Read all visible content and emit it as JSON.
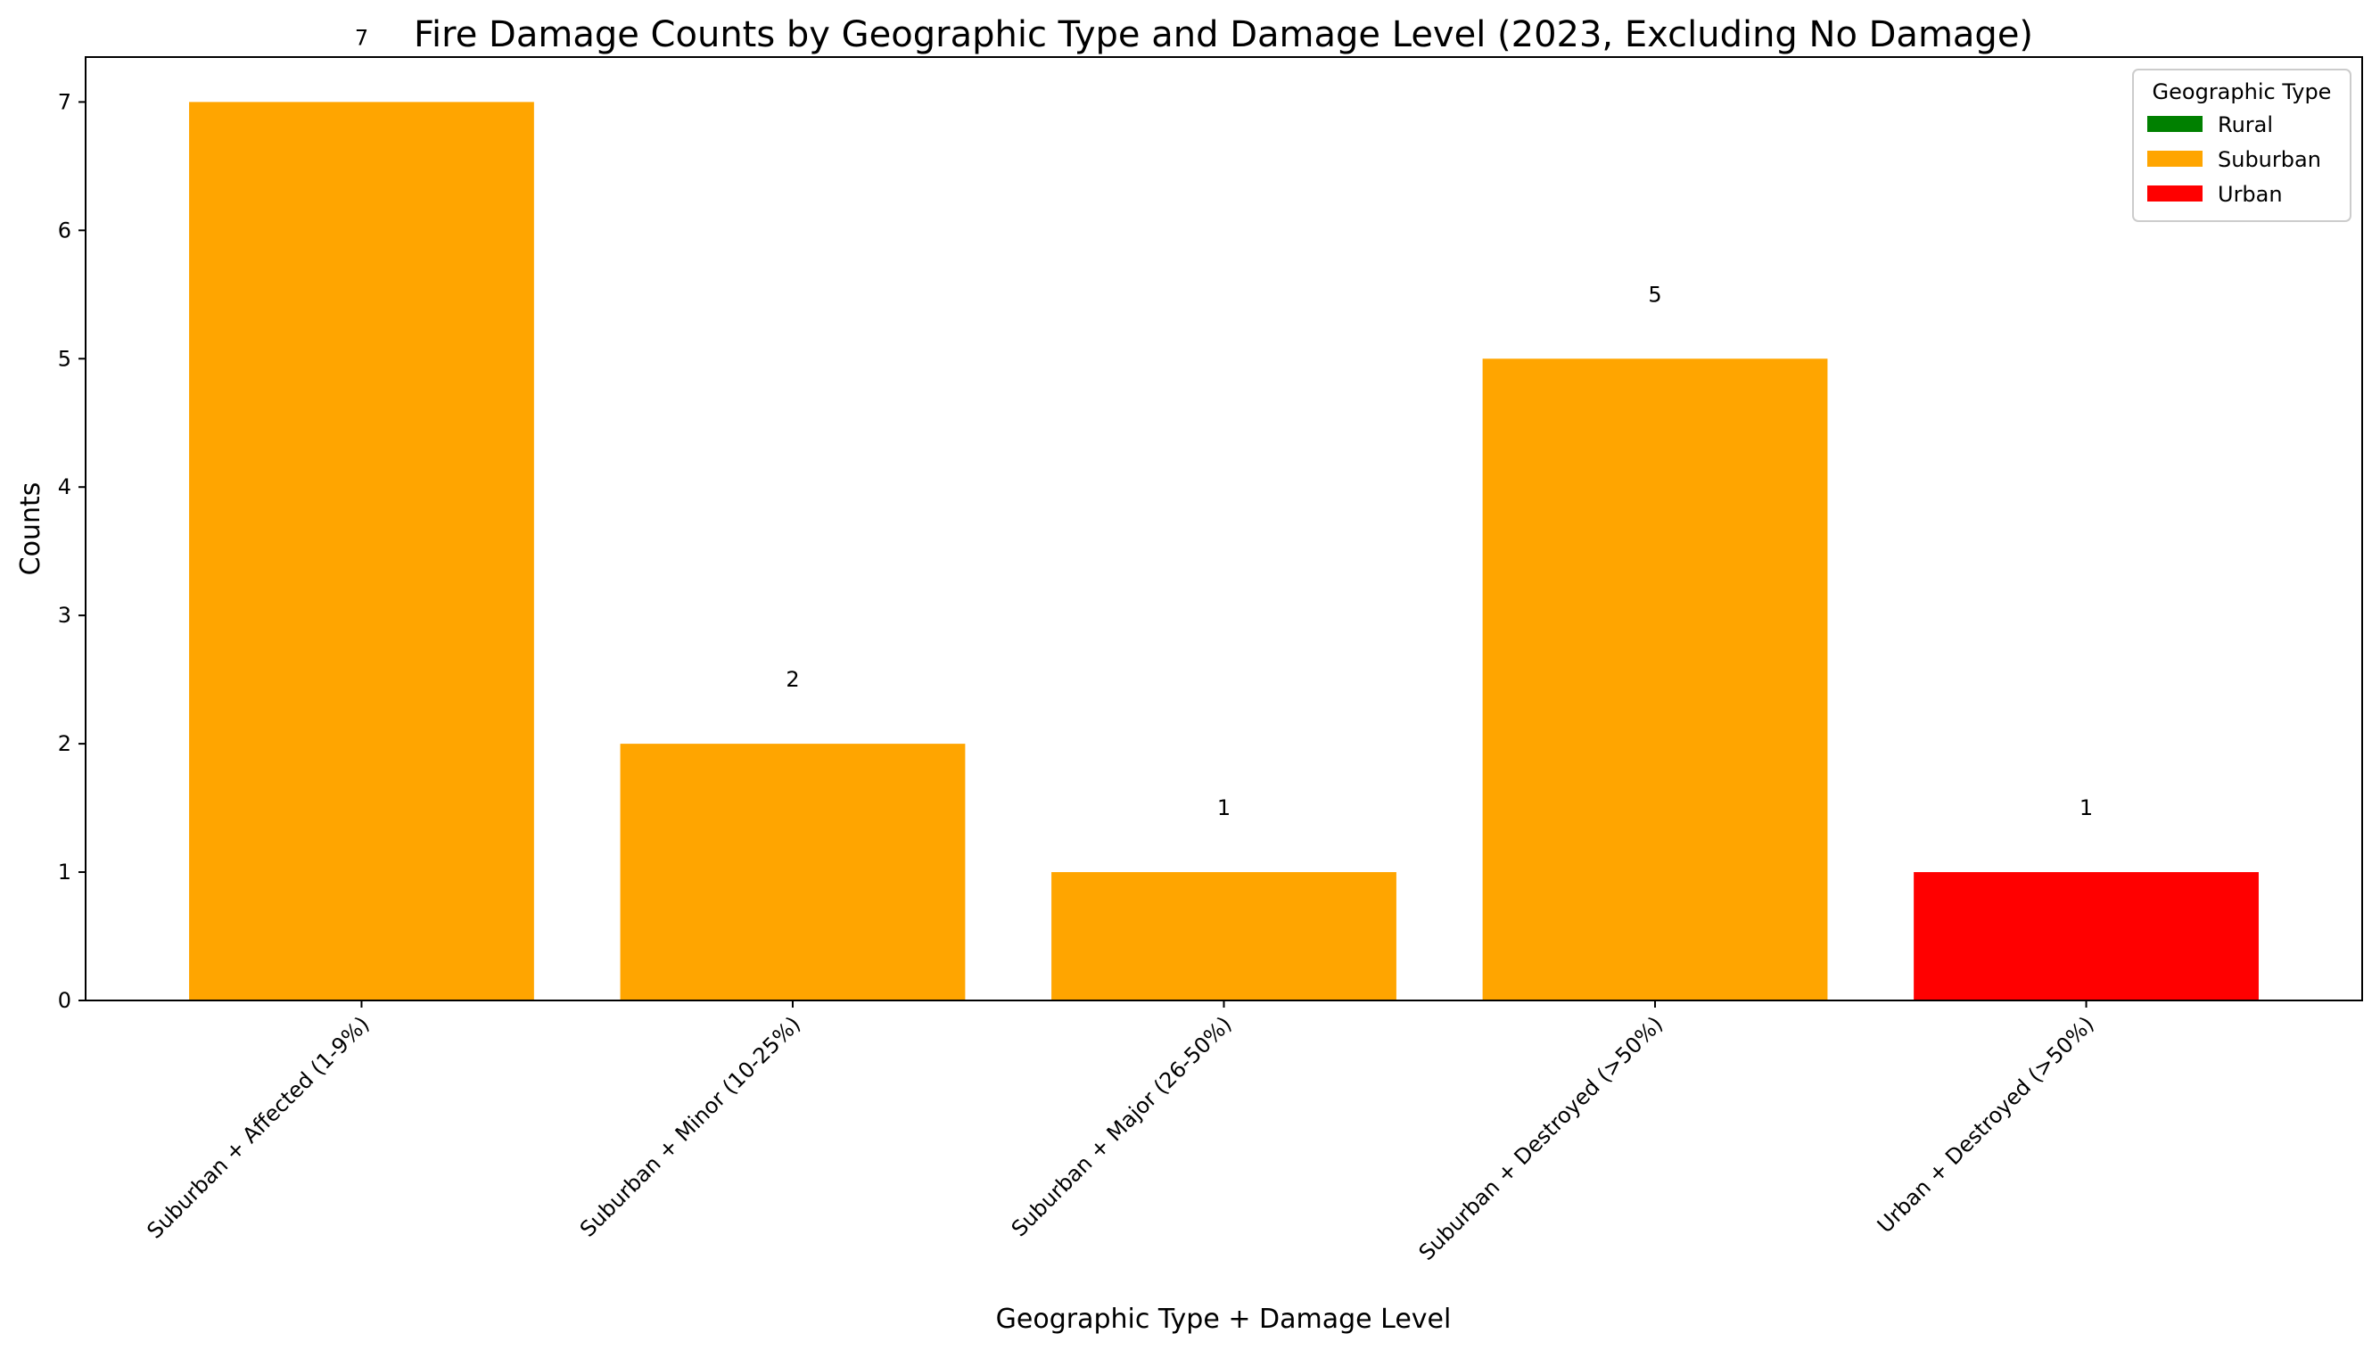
{
  "chart_data": {
    "type": "bar",
    "title": "Fire Damage Counts by Geographic Type and Damage Level (2023, Excluding No Damage)",
    "xlabel": "Geographic Type + Damage Level",
    "ylabel": "Counts",
    "categories": [
      "Suburban + Affected (1-9%)",
      "Suburban + Minor (10-25%)",
      "Suburban + Major (26-50%)",
      "Suburban + Destroyed (>50%)",
      "Urban + Destroyed (>50%)"
    ],
    "values": [
      7,
      2,
      1,
      5,
      1
    ],
    "data_labels": [
      "7",
      "2",
      "1",
      "5",
      "1"
    ],
    "bar_groups": [
      "Suburban",
      "Suburban",
      "Suburban",
      "Suburban",
      "Urban"
    ],
    "ylim": [
      0,
      7.35
    ],
    "yticks": [
      0,
      1,
      2,
      3,
      4,
      5,
      6,
      7
    ],
    "grid": false,
    "legend": {
      "title": "Geographic Type",
      "placement": "top-right",
      "entries": [
        {
          "label": "Rural",
          "color": "#008000"
        },
        {
          "label": "Suburban",
          "color": "#ffa500"
        },
        {
          "label": "Urban",
          "color": "#ff0000"
        }
      ]
    }
  }
}
